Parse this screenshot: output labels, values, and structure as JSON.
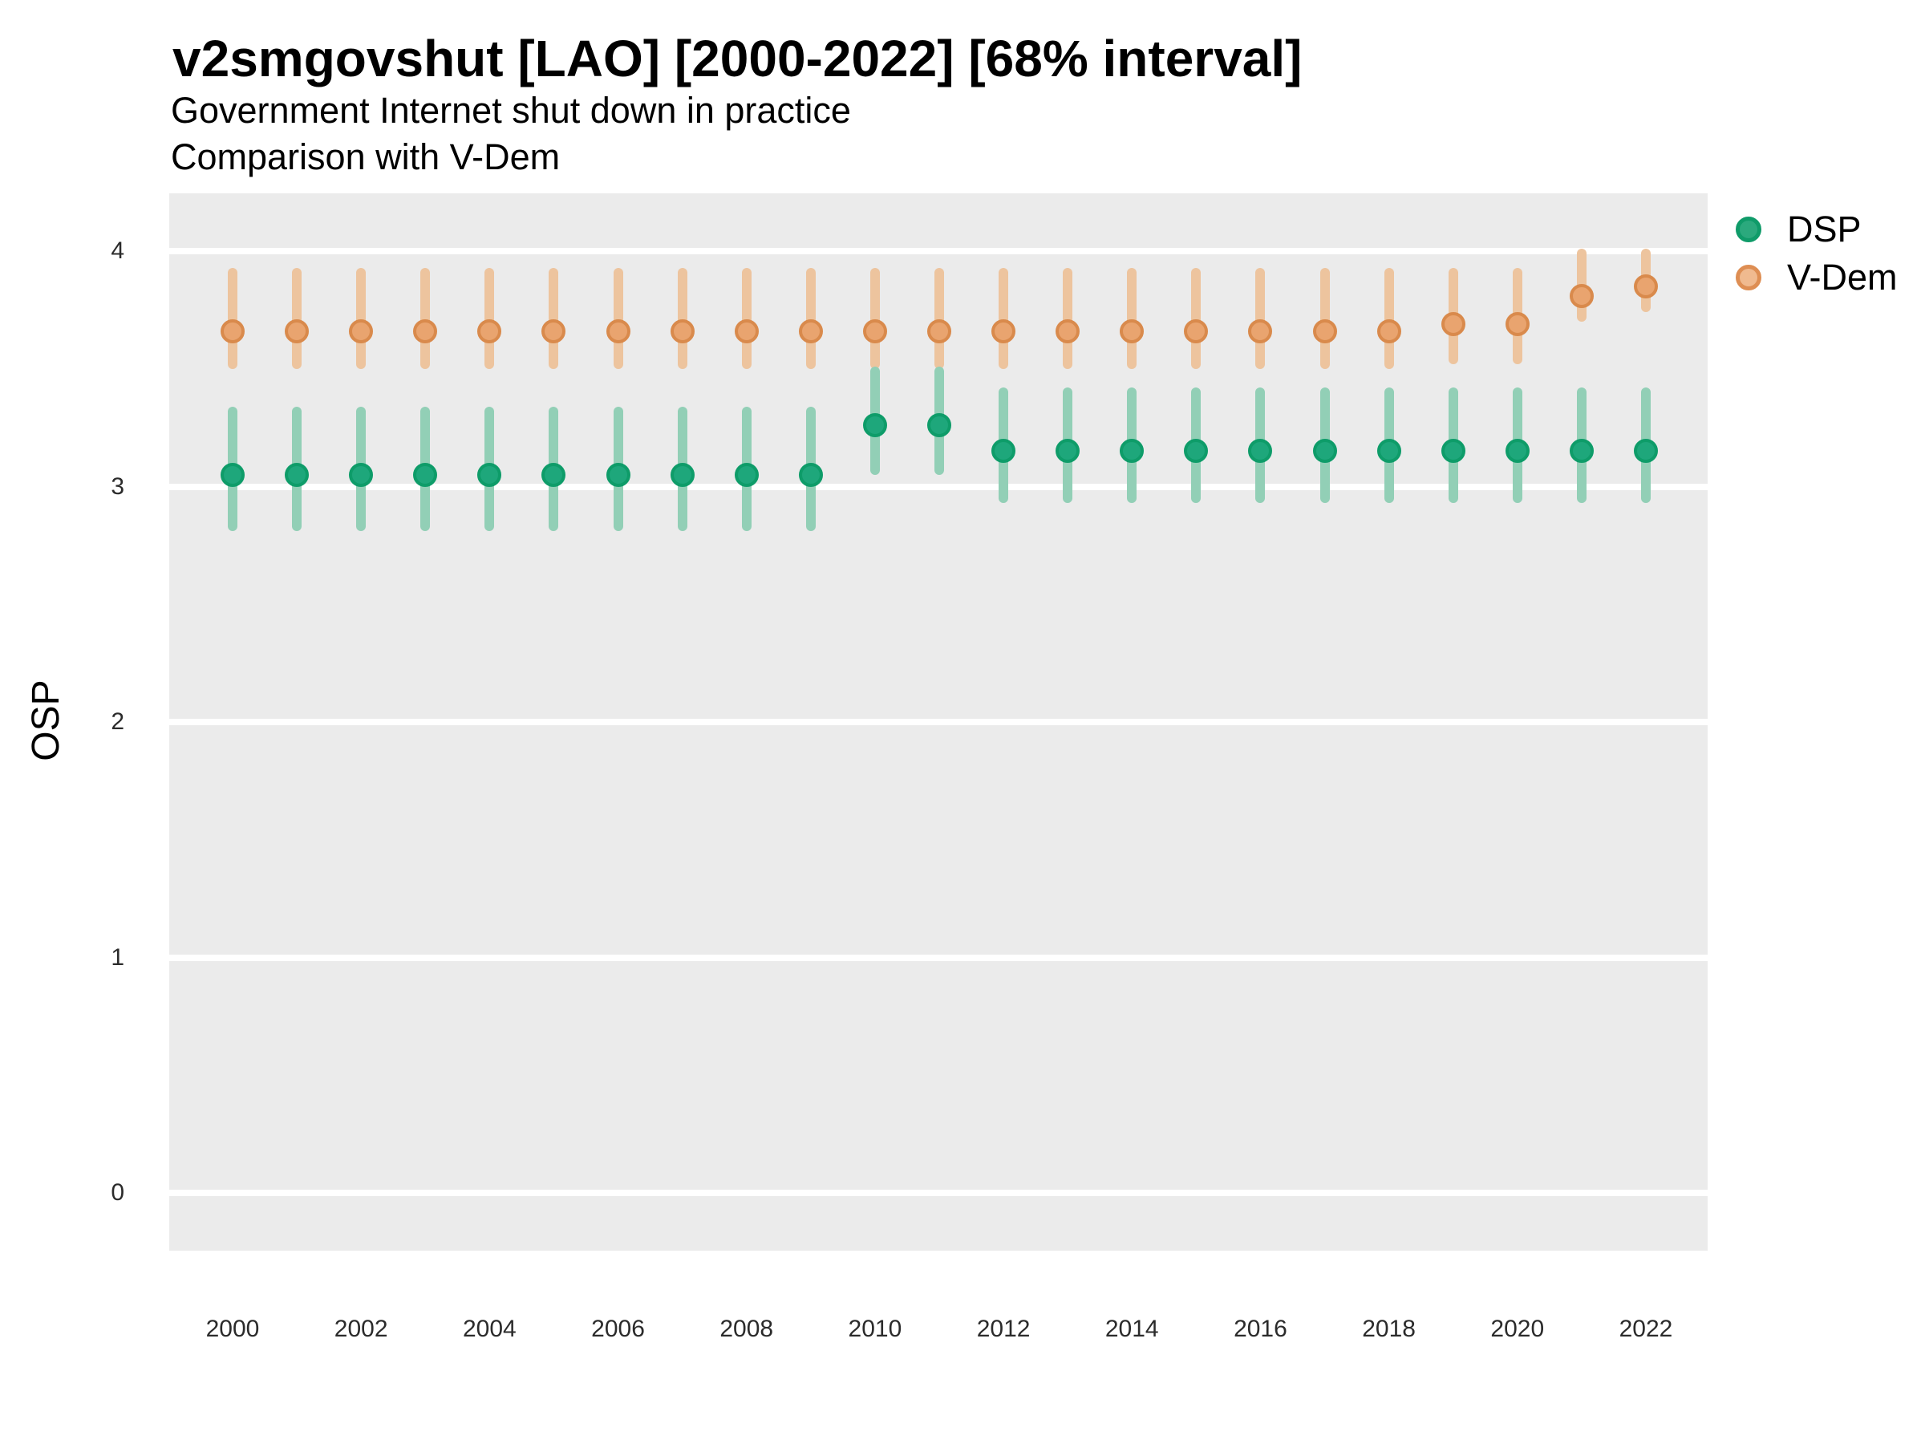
{
  "figure": {
    "title": "v2smgovshut [LAO] [2000-2022] [68% interval]",
    "subtitle_line1": "Government Internet shut down in practice",
    "subtitle_line2": "Comparison with V-Dem",
    "y_axis_label": "OSP"
  },
  "legend": {
    "position": "right",
    "items": [
      {
        "id": "dsp",
        "label": "DSP",
        "dot_fill": "#2BA97D",
        "dot_ring": "#0F9B69"
      },
      {
        "id": "vdem",
        "label": "V-Dem",
        "dot_fill": "#F0BA8F",
        "dot_ring": "#DE8E53"
      }
    ]
  },
  "colors": {
    "panel_background": "#EBEBEB",
    "gridline": "#FFFFFF",
    "dsp_interval": "#92CFB6",
    "dsp_point_fill": "#1EA77B",
    "dsp_point_ring": "#0E9C69",
    "vdem_interval": "#EDC49E",
    "vdem_point_fill": "#E9A46F",
    "vdem_point_ring": "#D98A4C",
    "axis_text": "#2b2b2b"
  },
  "chart_data": {
    "type": "pointrange",
    "title": "v2smgovshut [LAO] [2000-2022] [68% interval]",
    "subtitle": [
      "Government Internet shut down in practice",
      "Comparison with V-Dem"
    ],
    "xlabel": "",
    "ylabel": "OSP",
    "interval_level": "68%",
    "country": "LAO",
    "variable": "v2smgovshut",
    "ylim": [
      0,
      4
    ],
    "y_ticks": [
      0,
      1,
      2,
      3,
      4
    ],
    "x_tick_labels": [
      "2000",
      "2002",
      "2004",
      "2006",
      "2008",
      "2010",
      "2012",
      "2014",
      "2016",
      "2018",
      "2020",
      "2022"
    ],
    "x_ticks_years": [
      2000,
      2002,
      2004,
      2006,
      2008,
      2010,
      2012,
      2014,
      2016,
      2018,
      2020,
      2022
    ],
    "grid": "white major horizontal gridlines on gray panel",
    "legend_position": "right",
    "x": [
      2000,
      2001,
      2002,
      2003,
      2004,
      2005,
      2006,
      2007,
      2008,
      2009,
      2010,
      2011,
      2012,
      2013,
      2014,
      2015,
      2016,
      2017,
      2018,
      2019,
      2020,
      2021,
      2022
    ],
    "series": [
      {
        "name": "V-Dem",
        "points": [
          {
            "year": 2000,
            "est": 3.66,
            "lo": 3.5,
            "hi": 3.93
          },
          {
            "year": 2001,
            "est": 3.66,
            "lo": 3.5,
            "hi": 3.93
          },
          {
            "year": 2002,
            "est": 3.66,
            "lo": 3.5,
            "hi": 3.93
          },
          {
            "year": 2003,
            "est": 3.66,
            "lo": 3.5,
            "hi": 3.93
          },
          {
            "year": 2004,
            "est": 3.66,
            "lo": 3.5,
            "hi": 3.93
          },
          {
            "year": 2005,
            "est": 3.66,
            "lo": 3.5,
            "hi": 3.93
          },
          {
            "year": 2006,
            "est": 3.66,
            "lo": 3.5,
            "hi": 3.93
          },
          {
            "year": 2007,
            "est": 3.66,
            "lo": 3.5,
            "hi": 3.93
          },
          {
            "year": 2008,
            "est": 3.66,
            "lo": 3.5,
            "hi": 3.93
          },
          {
            "year": 2009,
            "est": 3.66,
            "lo": 3.5,
            "hi": 3.93
          },
          {
            "year": 2010,
            "est": 3.66,
            "lo": 3.5,
            "hi": 3.93
          },
          {
            "year": 2011,
            "est": 3.66,
            "lo": 3.5,
            "hi": 3.93
          },
          {
            "year": 2012,
            "est": 3.66,
            "lo": 3.5,
            "hi": 3.93
          },
          {
            "year": 2013,
            "est": 3.66,
            "lo": 3.5,
            "hi": 3.93
          },
          {
            "year": 2014,
            "est": 3.66,
            "lo": 3.5,
            "hi": 3.93
          },
          {
            "year": 2015,
            "est": 3.66,
            "lo": 3.5,
            "hi": 3.93
          },
          {
            "year": 2016,
            "est": 3.66,
            "lo": 3.5,
            "hi": 3.93
          },
          {
            "year": 2017,
            "est": 3.66,
            "lo": 3.5,
            "hi": 3.93
          },
          {
            "year": 2018,
            "est": 3.66,
            "lo": 3.5,
            "hi": 3.93
          },
          {
            "year": 2019,
            "est": 3.69,
            "lo": 3.52,
            "hi": 3.93
          },
          {
            "year": 2020,
            "est": 3.69,
            "lo": 3.52,
            "hi": 3.93
          },
          {
            "year": 2021,
            "est": 3.81,
            "lo": 3.7,
            "hi": 4.01
          },
          {
            "year": 2022,
            "est": 3.85,
            "lo": 3.74,
            "hi": 4.01
          }
        ]
      },
      {
        "name": "DSP",
        "points": [
          {
            "year": 2000,
            "est": 3.05,
            "lo": 2.81,
            "hi": 3.34
          },
          {
            "year": 2001,
            "est": 3.05,
            "lo": 2.81,
            "hi": 3.34
          },
          {
            "year": 2002,
            "est": 3.05,
            "lo": 2.81,
            "hi": 3.34
          },
          {
            "year": 2003,
            "est": 3.05,
            "lo": 2.81,
            "hi": 3.34
          },
          {
            "year": 2004,
            "est": 3.05,
            "lo": 2.81,
            "hi": 3.34
          },
          {
            "year": 2005,
            "est": 3.05,
            "lo": 2.81,
            "hi": 3.34
          },
          {
            "year": 2006,
            "est": 3.05,
            "lo": 2.81,
            "hi": 3.34
          },
          {
            "year": 2007,
            "est": 3.05,
            "lo": 2.81,
            "hi": 3.34
          },
          {
            "year": 2008,
            "est": 3.05,
            "lo": 2.81,
            "hi": 3.34
          },
          {
            "year": 2009,
            "est": 3.05,
            "lo": 2.81,
            "hi": 3.34
          },
          {
            "year": 2010,
            "est": 3.26,
            "lo": 3.05,
            "hi": 3.51
          },
          {
            "year": 2011,
            "est": 3.26,
            "lo": 3.05,
            "hi": 3.51
          },
          {
            "year": 2012,
            "est": 3.15,
            "lo": 2.93,
            "hi": 3.42
          },
          {
            "year": 2013,
            "est": 3.15,
            "lo": 2.93,
            "hi": 3.42
          },
          {
            "year": 2014,
            "est": 3.15,
            "lo": 2.93,
            "hi": 3.42
          },
          {
            "year": 2015,
            "est": 3.15,
            "lo": 2.93,
            "hi": 3.42
          },
          {
            "year": 2016,
            "est": 3.15,
            "lo": 2.93,
            "hi": 3.42
          },
          {
            "year": 2017,
            "est": 3.15,
            "lo": 2.93,
            "hi": 3.42
          },
          {
            "year": 2018,
            "est": 3.15,
            "lo": 2.93,
            "hi": 3.42
          },
          {
            "year": 2019,
            "est": 3.15,
            "lo": 2.93,
            "hi": 3.42
          },
          {
            "year": 2020,
            "est": 3.15,
            "lo": 2.93,
            "hi": 3.42
          },
          {
            "year": 2021,
            "est": 3.15,
            "lo": 2.93,
            "hi": 3.42
          },
          {
            "year": 2022,
            "est": 3.15,
            "lo": 2.93,
            "hi": 3.42
          }
        ]
      }
    ]
  }
}
